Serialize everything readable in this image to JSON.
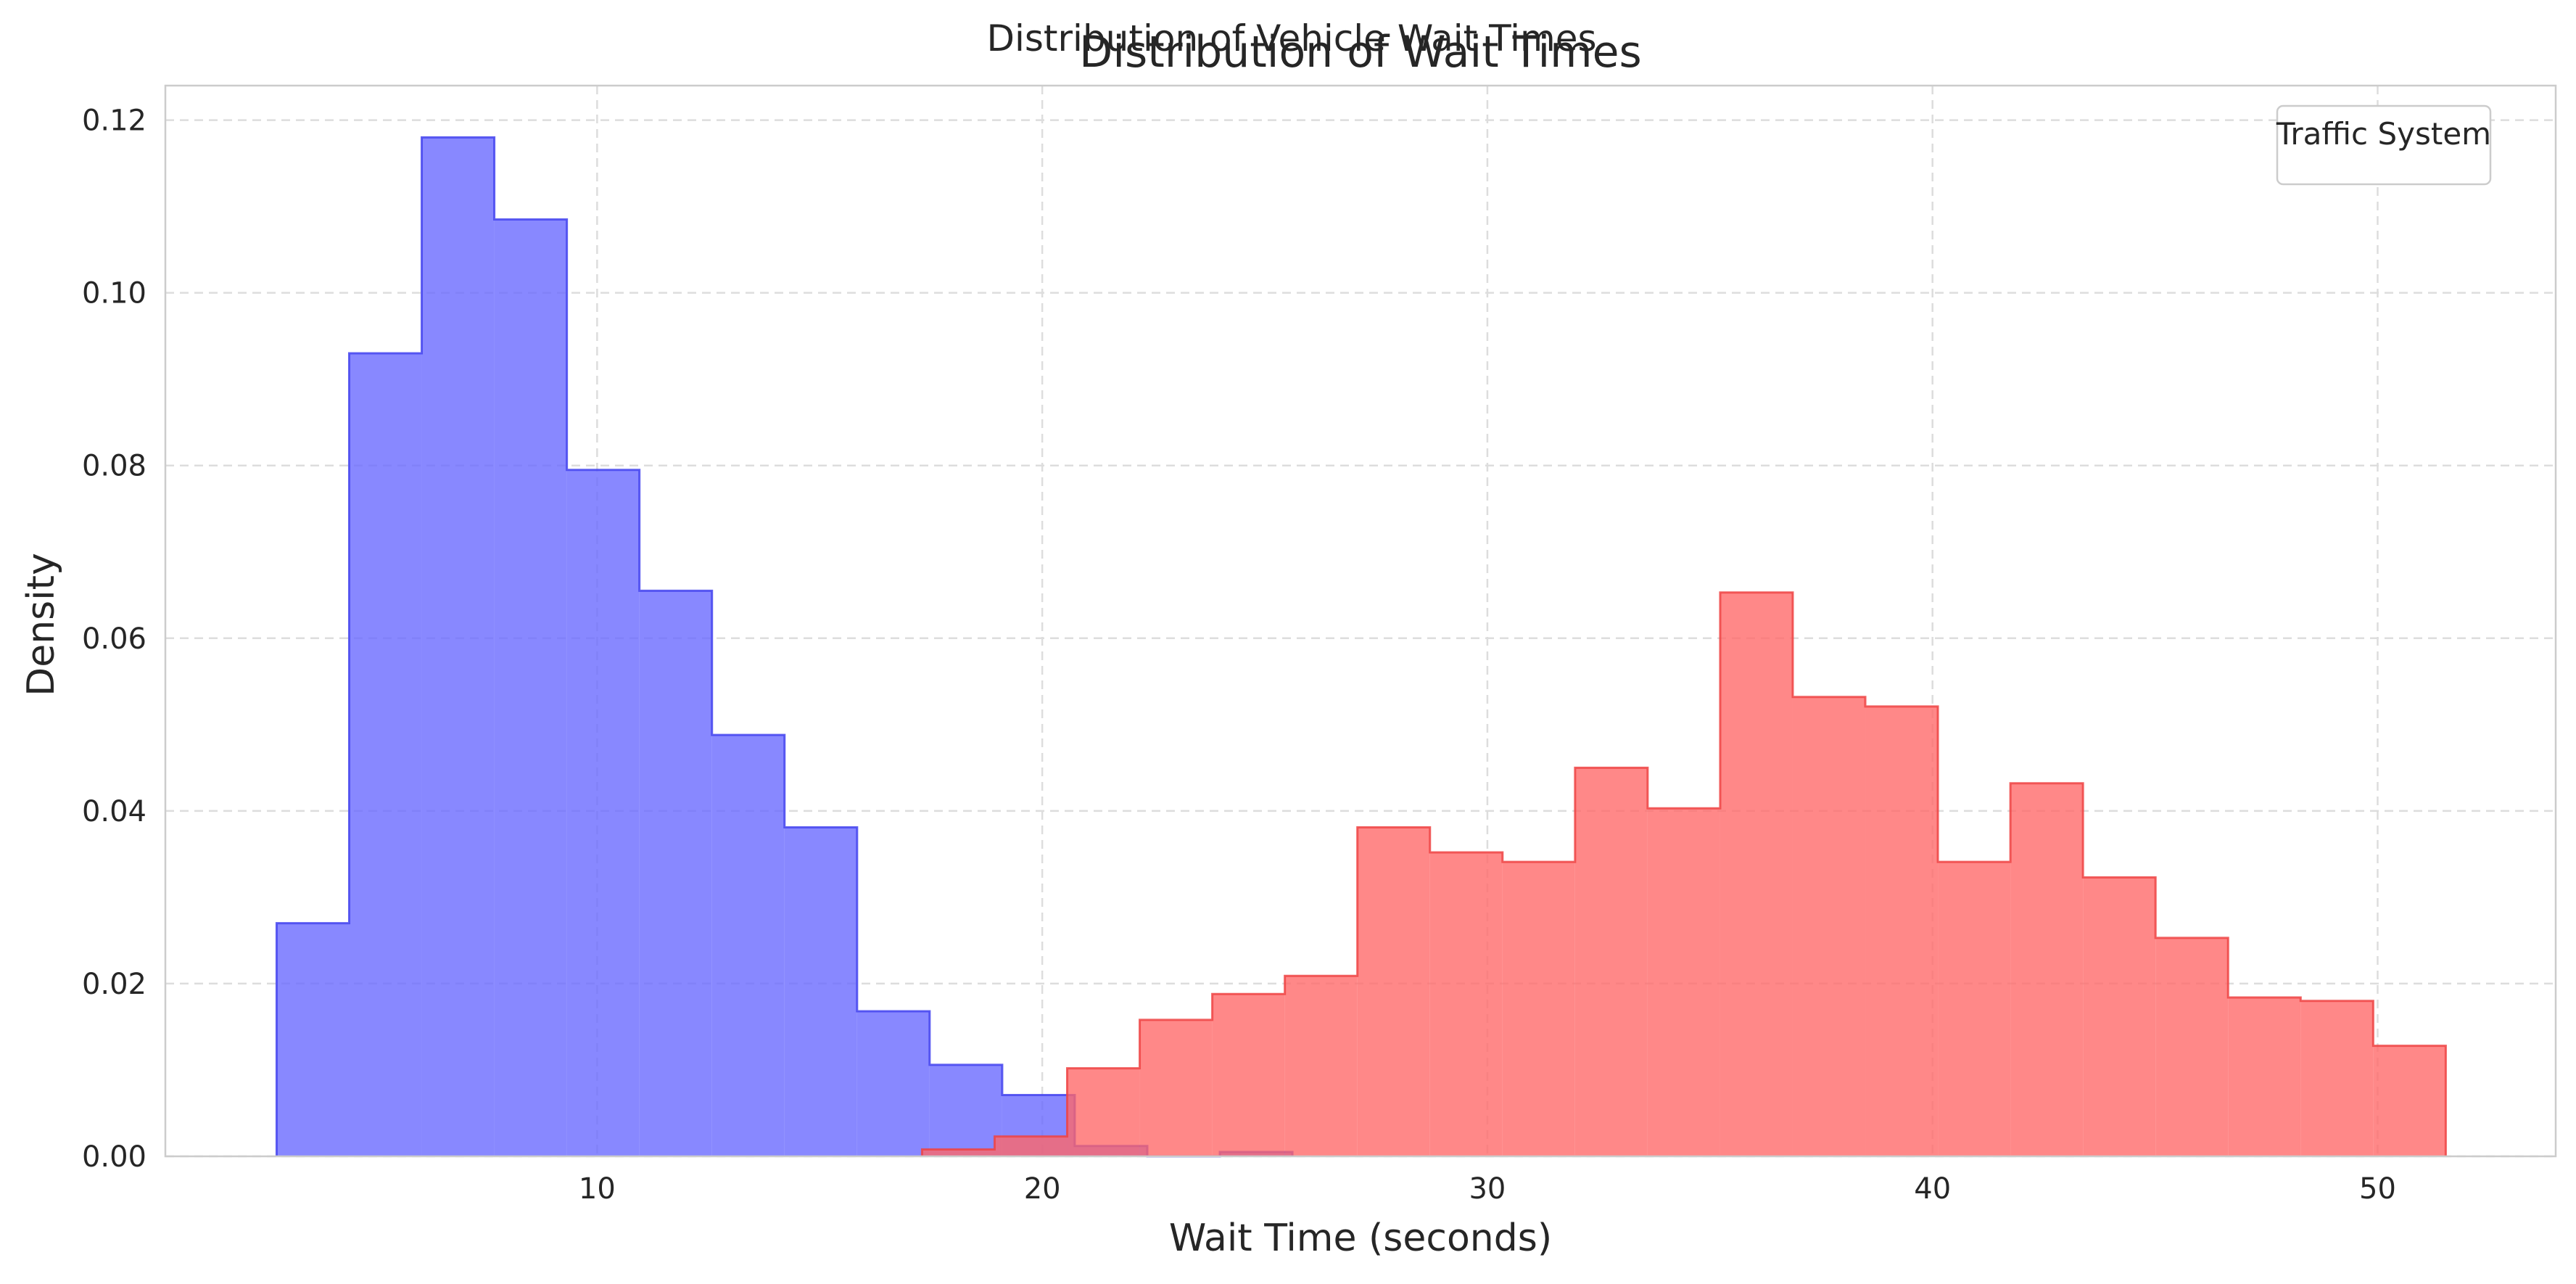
{
  "chart_data": {
    "type": "bar",
    "suptitle": "Distribution of Vehicle Wait Times",
    "title": "Distribution of Wait Times",
    "xlabel": "Wait Time (seconds)",
    "ylabel": "Density",
    "xlim": [
      0.3,
      54.0
    ],
    "ylim": [
      0,
      0.124
    ],
    "xticks": [
      10,
      20,
      30,
      40,
      50
    ],
    "yticks": [
      0.0,
      0.02,
      0.04,
      0.06,
      0.08,
      0.1,
      0.12
    ],
    "ytick_labels": [
      "0.00",
      "0.02",
      "0.04",
      "0.06",
      "0.08",
      "0.10",
      "0.12"
    ],
    "grid": true,
    "grid_style": "dashed",
    "legend": {
      "title": "Traffic System",
      "position": "top-right",
      "entries": []
    },
    "series": [
      {
        "color": "#6666ff",
        "edge_color": "#4444ee",
        "bin_edges": [
          2.8,
          4.43,
          6.06,
          7.69,
          9.32,
          10.95,
          12.58,
          14.21,
          15.84,
          17.47,
          19.1,
          20.73,
          22.36,
          23.99,
          25.62
        ],
        "values": [
          0.027,
          0.093,
          0.118,
          0.1085,
          0.0795,
          0.0655,
          0.0488,
          0.0381,
          0.0168,
          0.0106,
          0.0071,
          0.0012,
          0.0,
          0.0005
        ]
      },
      {
        "color": "#ff6666",
        "edge_color": "#ee4444",
        "bin_edges": [
          17.3,
          18.93,
          20.56,
          22.19,
          23.82,
          25.45,
          27.08,
          28.71,
          30.34,
          31.97,
          33.6,
          35.23,
          36.86,
          38.49,
          40.12,
          41.75,
          43.38,
          45.01,
          46.64,
          48.27,
          49.9,
          51.53
        ],
        "values": [
          0.0008,
          0.0023,
          0.0102,
          0.0158,
          0.0188,
          0.0209,
          0.0381,
          0.0352,
          0.0341,
          0.045,
          0.0403,
          0.0653,
          0.0532,
          0.0521,
          0.0341,
          0.0432,
          0.0323,
          0.0253,
          0.0184,
          0.018,
          0.0128
        ]
      }
    ]
  }
}
